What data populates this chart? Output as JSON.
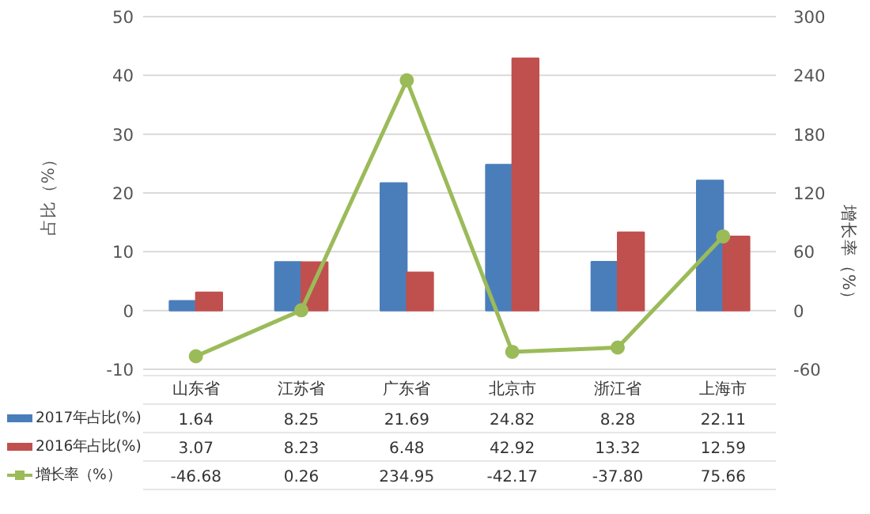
{
  "chart_data": {
    "type": "bar",
    "ylabel": "占比（%）",
    "y2label": "增长率（%）",
    "categories": [
      "山东省",
      "江苏省",
      "广东省",
      "北京市",
      "浙江省",
      "上海市"
    ],
    "series": [
      {
        "name": "2017年占比(%)",
        "color": "#4a7ebb",
        "values": [
          1.64,
          8.25,
          21.69,
          24.82,
          8.28,
          22.11
        ]
      },
      {
        "name": "2016年占比(%)",
        "color": "#c0504d",
        "values": [
          3.07,
          8.23,
          6.48,
          42.92,
          13.32,
          12.59
        ]
      },
      {
        "name": "增长率（%）",
        "type": "line",
        "axis": "y2",
        "color": "#9bbb59",
        "marker": "circle",
        "values": [
          -46.68,
          0.26,
          234.95,
          -42.17,
          -37.8,
          75.66
        ],
        "value_labels": [
          "-46.68",
          "0.26",
          "234.95",
          "-42.17",
          "-37.80",
          "75.66"
        ]
      }
    ],
    "ylim": [
      -10,
      50
    ],
    "yticks": [
      -10,
      0,
      10,
      20,
      30,
      40,
      50
    ],
    "y2lim": [
      -60,
      300
    ],
    "y2ticks": [
      -60,
      0,
      60,
      120,
      180,
      240,
      300
    ],
    "grid": "y",
    "legend": "bottom",
    "data_labels": true
  }
}
